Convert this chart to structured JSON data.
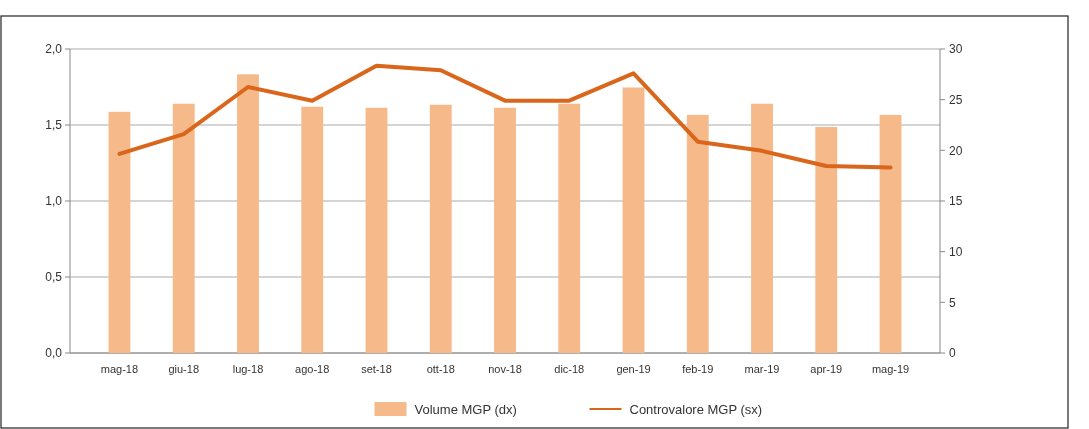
{
  "chart_data": {
    "type": "bar",
    "categories": [
      "mag-18",
      "giu-18",
      "lug-18",
      "ago-18",
      "set-18",
      "ott-18",
      "nov-18",
      "dic-18",
      "gen-19",
      "feb-19",
      "mar-19",
      "apr-19",
      "mag-19"
    ],
    "series": [
      {
        "name": "Volume MGP (dx)",
        "axis": "y2",
        "color": "#f5b98a",
        "values": [
          23.8,
          24.6,
          27.5,
          24.3,
          24.2,
          24.5,
          24.2,
          24.6,
          26.2,
          23.5,
          24.6,
          22.3,
          23.5
        ]
      },
      {
        "name": "Controvalore MGP (sx)",
        "type": "line",
        "color": "#d9661a",
        "values": [
          1.31,
          1.44,
          1.75,
          1.66,
          1.89,
          1.86,
          1.66,
          1.66,
          1.84,
          1.39,
          1.33,
          1.23,
          1.22
        ]
      }
    ],
    "ylim": [
      0,
      2
    ],
    "yticks": [
      {
        "value": 0,
        "label": "0,0"
      },
      {
        "value": 0.5,
        "label": "0,5"
      },
      {
        "value": 1,
        "label": "1,0"
      },
      {
        "value": 1.5,
        "label": "1,5"
      },
      {
        "value": 2,
        "label": "2,0"
      }
    ],
    "y2lim": [
      0,
      30
    ],
    "y2ticks": [
      0,
      5,
      10,
      15,
      20,
      25,
      30
    ],
    "grid": "y",
    "legend": "bottom",
    "marker": "none",
    "line_style": "solid"
  }
}
